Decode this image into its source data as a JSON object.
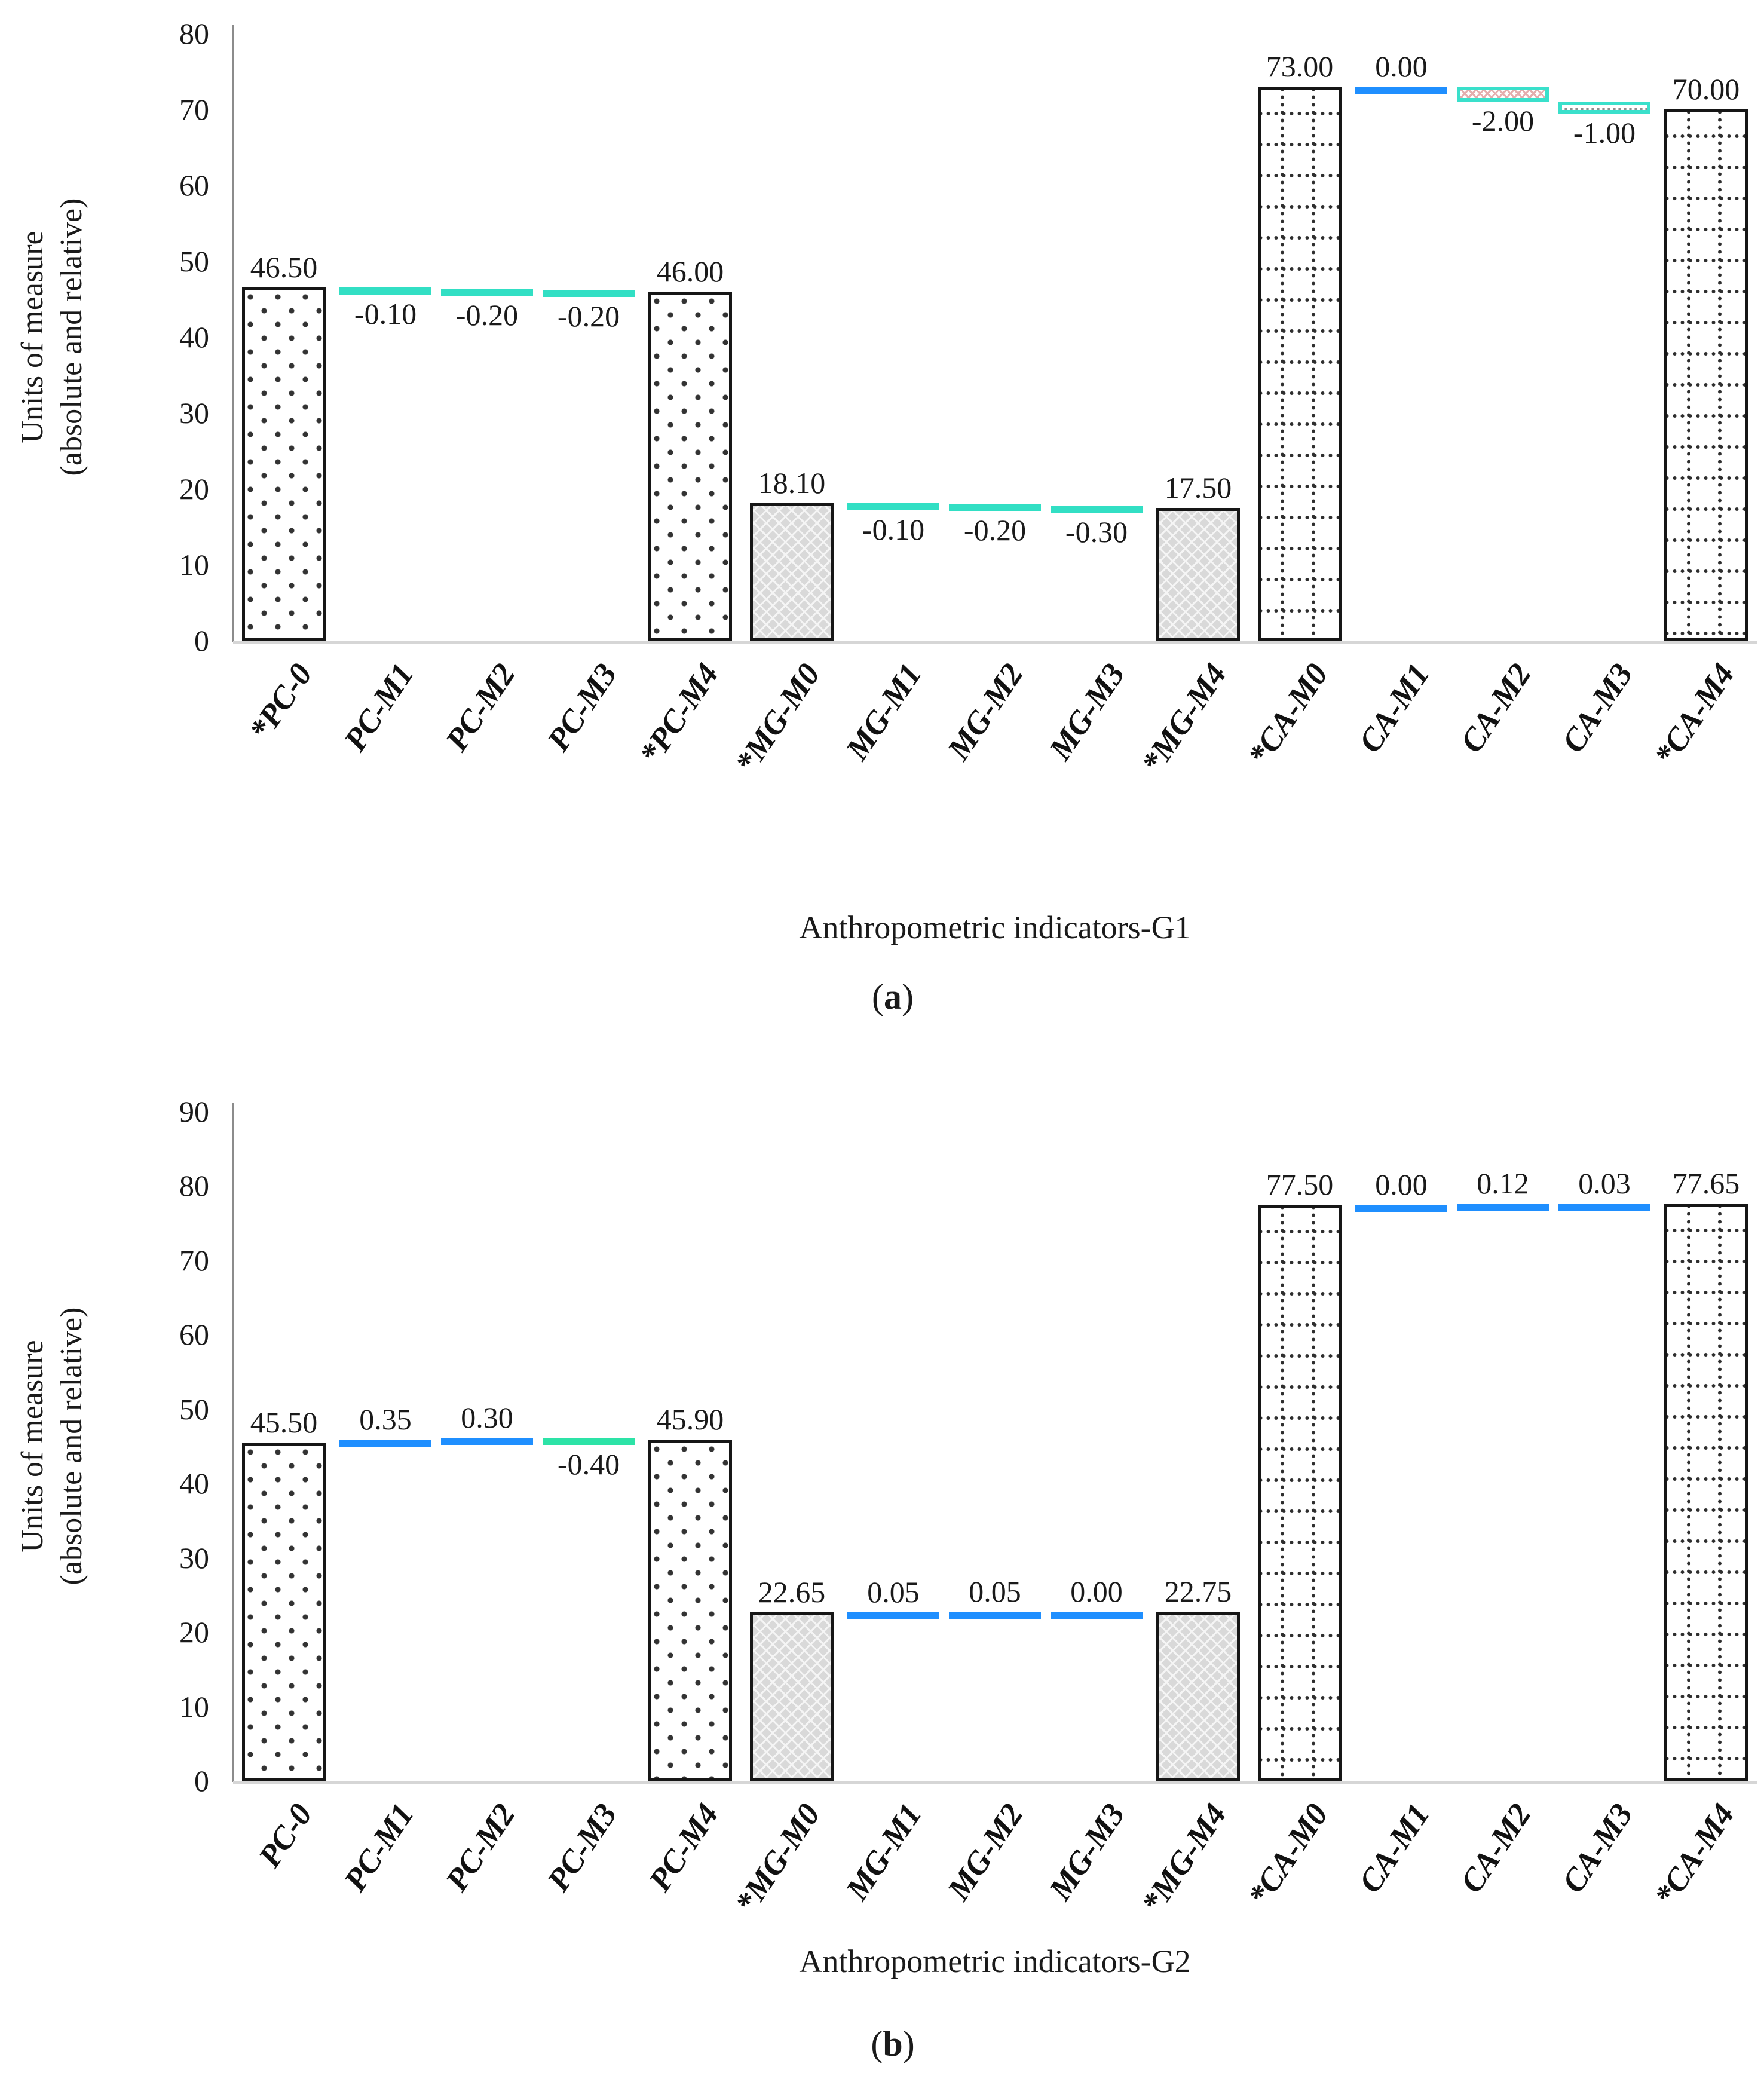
{
  "colors": {
    "positive_dash": "#1f8fff",
    "negative_dash_a": "#32dfc4",
    "negative_dash_b": "#2de3a7",
    "dash_pattern_border": "#3ae0cb",
    "x_pattern_fill": "#e4aeae",
    "dot_pattern_fill": "#8f8f8f",
    "bar_border": "#161616",
    "baseline": "#d6d6d6"
  },
  "chart_data": [
    {
      "type": "bar",
      "panel": "a",
      "caption": {
        "open": "(",
        "letter": "a",
        "close": ")"
      },
      "xlabel": "Anthropometric indicators-G1",
      "ylabel": "Units of measure (absolute and relative)",
      "ylabel_lines": [
        "Units of measure",
        "(absolute and relative)"
      ],
      "ylim": [
        0,
        80
      ],
      "yticks": [
        0,
        10,
        20,
        30,
        40,
        50,
        60,
        70,
        80
      ],
      "grid": "off",
      "legend": "none",
      "categories": [
        "*PC-0",
        "PC-M1",
        "PC-M2",
        "PC-M3",
        "*PC-M4",
        "*MG-M0",
        "MG-M1",
        "MG-M2",
        "MG-M3",
        "*MG-M4",
        "*CA-M0",
        "CA-M1",
        "CA-M2",
        "CA-M3",
        "*CA-M4"
      ],
      "values": [
        46.5,
        -0.1,
        -0.2,
        -0.2,
        46.0,
        18.1,
        -0.1,
        -0.2,
        -0.3,
        17.5,
        73.0,
        0.0,
        -2.0,
        -1.0,
        70.0
      ],
      "items": [
        {
          "category": "*PC-0",
          "value": 46.5,
          "label": "46.50",
          "kind": "bar",
          "pattern": "dots"
        },
        {
          "category": "PC-M1",
          "value": -0.1,
          "label": "-0.10",
          "kind": "dash",
          "style": "cyan"
        },
        {
          "category": "PC-M2",
          "value": -0.2,
          "label": "-0.20",
          "kind": "dash",
          "style": "cyan"
        },
        {
          "category": "PC-M3",
          "value": -0.2,
          "label": "-0.20",
          "kind": "dash",
          "style": "cyan"
        },
        {
          "category": "*PC-M4",
          "value": 46.0,
          "label": "46.00",
          "kind": "bar",
          "pattern": "dots"
        },
        {
          "category": "*MG-M0",
          "value": 18.1,
          "label": "18.10",
          "kind": "bar",
          "pattern": "trellis"
        },
        {
          "category": "MG-M1",
          "value": -0.1,
          "label": "-0.10",
          "kind": "dash",
          "style": "cyan"
        },
        {
          "category": "MG-M2",
          "value": -0.2,
          "label": "-0.20",
          "kind": "dash",
          "style": "cyan"
        },
        {
          "category": "MG-M3",
          "value": -0.3,
          "label": "-0.30",
          "kind": "dash",
          "style": "cyan"
        },
        {
          "category": "*MG-M4",
          "value": 17.5,
          "label": "17.50",
          "kind": "bar",
          "pattern": "trellis"
        },
        {
          "category": "*CA-M0",
          "value": 73.0,
          "label": "73.00",
          "kind": "bar",
          "pattern": "grid"
        },
        {
          "category": "CA-M1",
          "value": 0.0,
          "label": "0.00",
          "kind": "dash",
          "style": "blue"
        },
        {
          "category": "CA-M2",
          "value": -2.0,
          "label": "-2.00",
          "kind": "dash",
          "style": "cyan-x"
        },
        {
          "category": "CA-M3",
          "value": -1.0,
          "label": "-1.00",
          "kind": "dash",
          "style": "cyan-dot"
        },
        {
          "category": "*CA-M4",
          "value": 70.0,
          "label": "70.00",
          "kind": "bar",
          "pattern": "grid"
        }
      ]
    },
    {
      "type": "bar",
      "panel": "b",
      "caption": {
        "open": "(",
        "letter": "b",
        "close": ")"
      },
      "xlabel": "Anthropometric indicators-G2",
      "ylabel": "Units of measure (absolute and relative)",
      "ylabel_lines": [
        "Units of measure",
        "(absolute and relative)"
      ],
      "ylim": [
        0,
        90
      ],
      "yticks": [
        0,
        10,
        20,
        30,
        40,
        50,
        60,
        70,
        80,
        90
      ],
      "grid": "off",
      "legend": "none",
      "categories": [
        "PC-0",
        "PC-M1",
        "PC-M2",
        "PC-M3",
        "PC-M4",
        "*MG-M0",
        "MG-M1",
        "MG-M2",
        "MG-M3",
        "*MG-M4",
        "*CA-M0",
        "CA-M1",
        "CA-M2",
        "CA-M3",
        "*CA-M4"
      ],
      "values": [
        45.5,
        0.35,
        0.3,
        -0.4,
        45.9,
        22.65,
        0.05,
        0.05,
        0.0,
        22.75,
        77.5,
        0.0,
        0.12,
        0.03,
        77.65
      ],
      "items": [
        {
          "category": "PC-0",
          "value": 45.5,
          "label": "45.50",
          "kind": "bar",
          "pattern": "dots"
        },
        {
          "category": "PC-M1",
          "value": 0.35,
          "label": "0.35",
          "kind": "dash",
          "style": "blue"
        },
        {
          "category": "PC-M2",
          "value": 0.3,
          "label": "0.30",
          "kind": "dash",
          "style": "blue"
        },
        {
          "category": "PC-M3",
          "value": -0.4,
          "label": "-0.40",
          "kind": "dash",
          "style": "teal"
        },
        {
          "category": "PC-M4",
          "value": 45.9,
          "label": "45.90",
          "kind": "bar",
          "pattern": "dots"
        },
        {
          "category": "*MG-M0",
          "value": 22.65,
          "label": "22.65",
          "kind": "bar",
          "pattern": "trellis"
        },
        {
          "category": "MG-M1",
          "value": 0.05,
          "label": "0.05",
          "kind": "dash",
          "style": "blue"
        },
        {
          "category": "MG-M2",
          "value": 0.05,
          "label": "0.05",
          "kind": "dash",
          "style": "blue"
        },
        {
          "category": "MG-M3",
          "value": 0.0,
          "label": "0.00",
          "kind": "dash",
          "style": "blue"
        },
        {
          "category": "*MG-M4",
          "value": 22.75,
          "label": "22.75",
          "kind": "bar",
          "pattern": "trellis"
        },
        {
          "category": "*CA-M0",
          "value": 77.5,
          "label": "77.50",
          "kind": "bar",
          "pattern": "grid"
        },
        {
          "category": "CA-M1",
          "value": 0.0,
          "label": "0.00",
          "kind": "dash",
          "style": "blue"
        },
        {
          "category": "CA-M2",
          "value": 0.12,
          "label": "0.12",
          "kind": "dash",
          "style": "blue"
        },
        {
          "category": "CA-M3",
          "value": 0.03,
          "label": "0.03",
          "kind": "dash",
          "style": "blue"
        },
        {
          "category": "*CA-M4",
          "value": 77.65,
          "label": "77.65",
          "kind": "bar",
          "pattern": "grid"
        }
      ]
    }
  ]
}
